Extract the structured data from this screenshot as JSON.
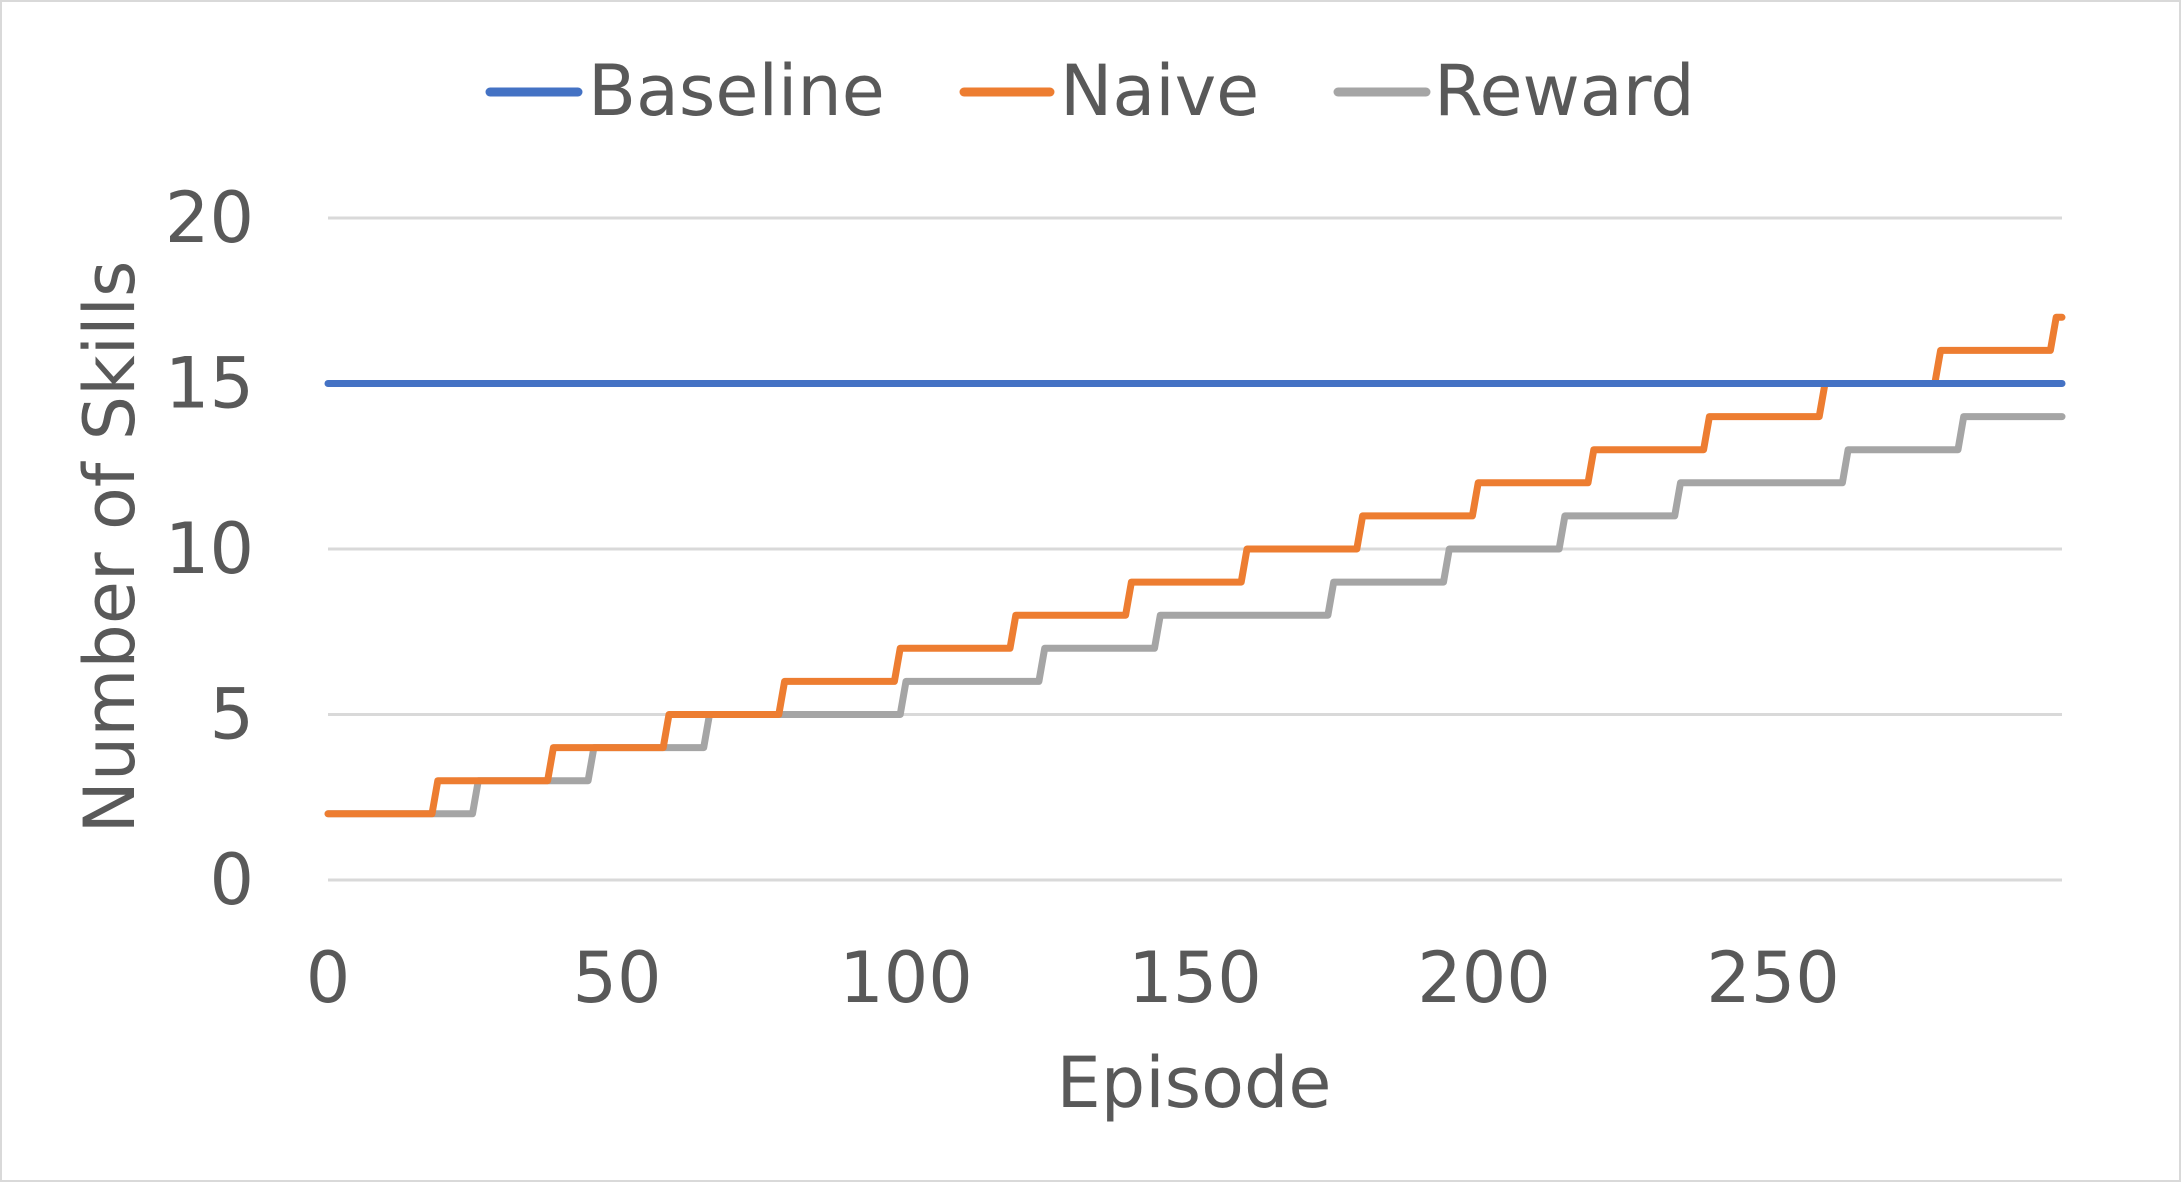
{
  "chart_data": {
    "type": "line",
    "title": "",
    "xlabel": "Episode",
    "ylabel": "Number of Skills",
    "xlim": [
      0,
      300
    ],
    "ylim": [
      0,
      20
    ],
    "x_ticks": [
      0,
      50,
      100,
      150,
      200,
      250
    ],
    "x_tick_labels": [
      "0",
      "50",
      "100",
      "150",
      "200",
      "250"
    ],
    "y_ticks": [
      0,
      5,
      10,
      15,
      20
    ],
    "y_tick_labels": [
      "0",
      "5",
      "10",
      "15",
      "20"
    ],
    "grid": "horizontal",
    "legend_position": "top",
    "series": [
      {
        "name": "Baseline",
        "color": "#4472C4",
        "points": [
          [
            0,
            15
          ],
          [
            300,
            15
          ]
        ]
      },
      {
        "name": "Naive",
        "color": "#ED7D31",
        "points": [
          [
            0,
            2
          ],
          [
            18,
            2
          ],
          [
            19,
            3
          ],
          [
            38,
            3
          ],
          [
            39,
            4
          ],
          [
            58,
            4
          ],
          [
            59,
            5
          ],
          [
            65,
            5
          ],
          [
            78,
            5
          ],
          [
            79,
            6
          ],
          [
            98,
            6
          ],
          [
            99,
            7
          ],
          [
            118,
            7
          ],
          [
            119,
            8
          ],
          [
            138,
            8
          ],
          [
            139,
            9
          ],
          [
            158,
            9
          ],
          [
            159,
            10
          ],
          [
            178,
            10
          ],
          [
            179,
            11
          ],
          [
            198,
            11
          ],
          [
            199,
            12
          ],
          [
            218,
            12
          ],
          [
            219,
            13
          ],
          [
            238,
            13
          ],
          [
            239,
            14
          ],
          [
            258,
            14
          ],
          [
            259,
            15
          ],
          [
            278,
            15
          ],
          [
            279,
            16
          ],
          [
            298,
            16
          ],
          [
            299,
            17
          ],
          [
            300,
            17
          ]
        ]
      },
      {
        "name": "Reward",
        "color": "#A5A5A5",
        "points": [
          [
            0,
            2
          ],
          [
            25,
            2
          ],
          [
            26,
            3
          ],
          [
            45,
            3
          ],
          [
            46,
            4
          ],
          [
            65,
            4
          ],
          [
            66,
            5
          ],
          [
            99,
            5
          ],
          [
            100,
            6
          ],
          [
            123,
            6
          ],
          [
            124,
            7
          ],
          [
            143,
            7
          ],
          [
            144,
            8
          ],
          [
            173,
            8
          ],
          [
            174,
            9
          ],
          [
            193,
            9
          ],
          [
            194,
            10
          ],
          [
            213,
            10
          ],
          [
            214,
            11
          ],
          [
            233,
            11
          ],
          [
            234,
            12
          ],
          [
            262,
            12
          ],
          [
            263,
            13
          ],
          [
            282,
            13
          ],
          [
            283,
            14
          ],
          [
            300,
            14
          ]
        ]
      }
    ]
  }
}
